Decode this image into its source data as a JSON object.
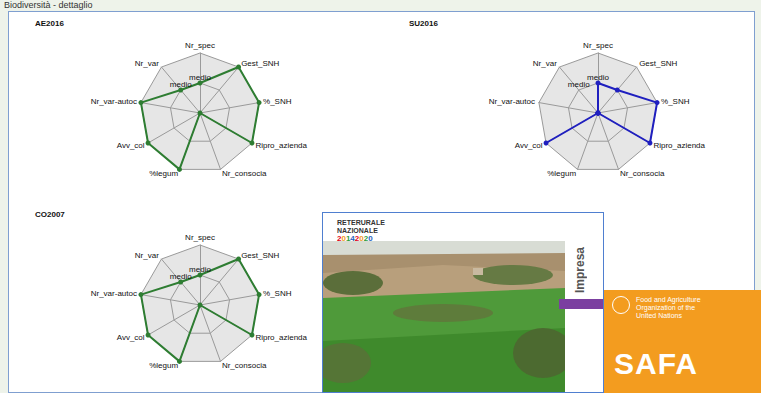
{
  "header": "Biodiversità - dettaglio",
  "chart_data": [
    {
      "type": "radar",
      "title": "AE2016",
      "categories": [
        "Nr_spec",
        "Nr_var",
        "Nr_var-autoc",
        "Avv_col",
        "%legum",
        "Nr_consocia",
        "Ripro_azienda",
        "%_SNH",
        "Gest_SNH"
      ],
      "values": [
        1,
        1,
        2,
        2,
        2,
        0,
        2,
        2,
        2
      ],
      "color": "#2e7d32",
      "marker": "circle",
      "ylim": [
        0,
        2
      ],
      "yticks": [
        {
          "value": 1,
          "label": "medio"
        }
      ]
    },
    {
      "type": "radar",
      "title": "SU2016",
      "categories": [
        "Nr_spec",
        "Nr_var",
        "Nr_var-autoc",
        "Avv_col",
        "%legum",
        "Nr_consocia",
        "Ripro_azienda",
        "%_SNH",
        "Gest_SNH"
      ],
      "values": [
        1,
        0,
        0,
        2,
        0,
        0,
        2,
        2,
        1
      ],
      "color": "#1f1fbf",
      "marker": "circle",
      "ylim": [
        0,
        2
      ],
      "yticks": [
        {
          "value": 1,
          "label": "medio"
        }
      ]
    },
    {
      "type": "radar",
      "title": "CO2007",
      "categories": [
        "Nr_spec",
        "Nr_var",
        "Nr_var-autoc",
        "Avv_col",
        "%legum",
        "Nr_consocia",
        "Ripro_azienda",
        "%_SNH",
        "Gest_SNH"
      ],
      "values": [
        1,
        1,
        2,
        2,
        2,
        0,
        2,
        2,
        2
      ],
      "color": "#2e7d32",
      "marker": "circle",
      "ylim": [
        0,
        2
      ],
      "yticks": [
        {
          "value": 1,
          "label": "medio"
        }
      ]
    }
  ],
  "photo_panel": {
    "logo": [
      "RETERURALE",
      "NAZIONALE",
      "20142020"
    ],
    "side_label": "Impresa"
  },
  "fao_panel": {
    "text": [
      "Food and Agriculture",
      "Organization of the",
      "United Nations"
    ],
    "banner": "SAFA"
  }
}
